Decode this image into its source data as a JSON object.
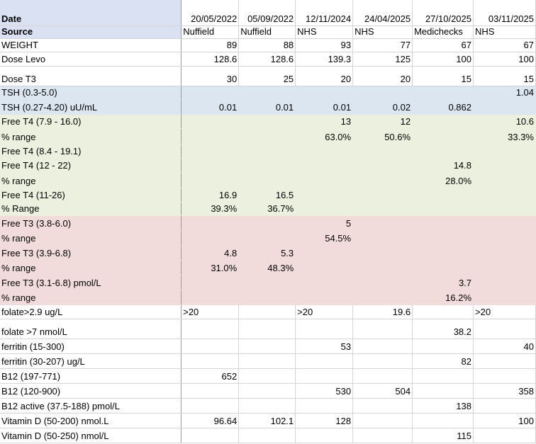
{
  "sheet": {
    "header": {
      "date_label": "Date",
      "dates": [
        "20/05/2022",
        "05/09/2022",
        "12/11/2024",
        "24/04/2025",
        "27/10/2025",
        "03/11/2025"
      ],
      "source_label": "Source",
      "sources": [
        "Nuffield",
        "Nuffield",
        "NHS",
        "NHS",
        "Medichecks",
        "NHS"
      ]
    },
    "rows": [
      {
        "label": "WEIGHT",
        "values": [
          "89",
          "88",
          "93",
          "77",
          "67",
          "67"
        ]
      },
      {
        "label": "Dose Levo",
        "values": [
          "128.6",
          "128.6",
          "139.3",
          "125",
          "100",
          "100"
        ]
      },
      {
        "label": "Dose T3",
        "values": [
          "30",
          "25",
          "20",
          "20",
          "15",
          "15"
        ]
      },
      {
        "label": "TSH (0.3-5.0)",
        "values": [
          "",
          "",
          "",
          "",
          "",
          "1.04"
        ]
      },
      {
        "label": "TSH (0.27-4.20) uU/mL",
        "values": [
          "0.01",
          "0.01",
          "0.01",
          "0.02",
          "0.862",
          ""
        ]
      },
      {
        "label": "Free T4 (7.9 - 16.0)",
        "values": [
          "",
          "",
          "13",
          "12",
          "",
          "10.6"
        ]
      },
      {
        "label": "% range",
        "values": [
          "",
          "",
          "63.0%",
          "50.6%",
          "",
          "33.3%"
        ]
      },
      {
        "label": "Free T4 (8.4 - 19.1)",
        "values": [
          "",
          "",
          "",
          "",
          "",
          ""
        ]
      },
      {
        "label": "Free T4 (12 - 22)",
        "values": [
          "",
          "",
          "",
          "",
          "14.8",
          ""
        ]
      },
      {
        "label": "% range",
        "values": [
          "",
          "",
          "",
          "",
          "28.0%",
          ""
        ]
      },
      {
        "label": "Free T4 (11-26)",
        "values": [
          "16.9",
          "16.5",
          "",
          "",
          "",
          ""
        ]
      },
      {
        "label": "% Range",
        "values": [
          "39.3%",
          "36.7%",
          "",
          "",
          "",
          ""
        ]
      },
      {
        "label": "Free T3 (3.8-6.0)",
        "values": [
          "",
          "",
          "5",
          "",
          "",
          ""
        ]
      },
      {
        "label": "% range",
        "values": [
          "",
          "",
          "54.5%",
          "",
          "",
          ""
        ]
      },
      {
        "label": "Free T3 (3.9-6.8)",
        "values": [
          "4.8",
          "5.3",
          "",
          "",
          "",
          ""
        ]
      },
      {
        "label": "% range",
        "values": [
          "31.0%",
          "48.3%",
          "",
          "",
          "",
          ""
        ]
      },
      {
        "label": "Free T3 (3.1-6.8) pmol/L",
        "values": [
          "",
          "",
          "",
          "",
          "3.7",
          ""
        ]
      },
      {
        "label": "% range",
        "values": [
          "",
          "",
          "",
          "",
          "16.2%",
          ""
        ]
      },
      {
        "label": "folate>2.9 ug/L",
        "values": [
          ">20",
          "",
          ">20",
          "19.6",
          "",
          ">20"
        ]
      },
      {
        "label": "folate >7 nmol/L",
        "values": [
          "",
          "",
          "",
          "",
          "38.2",
          ""
        ]
      },
      {
        "label": "ferritin (15-300)",
        "values": [
          "",
          "",
          "53",
          "",
          "",
          "40"
        ]
      },
      {
        "label": "ferritin (30-207) ug/L",
        "values": [
          "",
          "",
          "",
          "",
          "82",
          ""
        ]
      },
      {
        "label": "B12 (197-771)",
        "values": [
          "652",
          "",
          "",
          "",
          "",
          ""
        ]
      },
      {
        "label": "B12 (120-900)",
        "values": [
          "",
          "",
          "530",
          "504",
          "",
          "358"
        ]
      },
      {
        "label": "B12 active (37.5-188) pmol/L",
        "values": [
          "",
          "",
          "",
          "",
          "138",
          ""
        ]
      },
      {
        "label": "Vitamin D (50-200) nmol.L",
        "values": [
          "96.64",
          "102.1",
          "128",
          "",
          "",
          "100"
        ]
      },
      {
        "label": "Vitamin D (50-250) nmol/L",
        "values": [
          "",
          "",
          "",
          "",
          "115",
          ""
        ]
      }
    ],
    "colors": {
      "header_blue": "#d9e1f2",
      "tsh_blue": "#dce6f1",
      "t4_green": "#ebf1de",
      "t3_red": "#f2dcdb",
      "gridline": "#d4d4d4"
    }
  }
}
